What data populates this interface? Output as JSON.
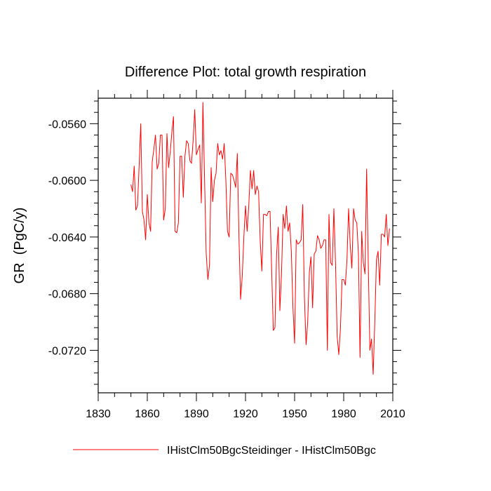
{
  "chart_data": {
    "type": "line",
    "title": "Difference Plot: total growth respiration",
    "xlabel": "",
    "ylabel": "GR  (PgC/y)",
    "xlim": [
      1830,
      2010
    ],
    "ylim": [
      -0.075,
      -0.0542
    ],
    "xticks": [
      1830,
      1860,
      1890,
      1920,
      1950,
      1980,
      2010
    ],
    "xtick_labels": [
      "1830",
      "1860",
      "1890",
      "1920",
      "1950",
      "1980",
      "2010"
    ],
    "yticks": [
      -0.056,
      -0.06,
      -0.064,
      -0.068,
      -0.072
    ],
    "ytick_labels": [
      "-0.0560",
      "-0.0600",
      "-0.0640",
      "-0.0680",
      "-0.0720"
    ],
    "grid": false,
    "legend_position": "bottom",
    "series": [
      {
        "name": "IHistClm50BgcSteidinger - IHistClm50Bgc",
        "color": "#ff0000",
        "x_start": 1850,
        "x_step": 1,
        "values": [
          -0.0603,
          -0.0608,
          -0.059,
          -0.0621,
          -0.0618,
          -0.059,
          -0.056,
          -0.0622,
          -0.0628,
          -0.0642,
          -0.061,
          -0.063,
          -0.0636,
          -0.0587,
          -0.0578,
          -0.0568,
          -0.0592,
          -0.0588,
          -0.0568,
          -0.0568,
          -0.0628,
          -0.062,
          -0.0567,
          -0.0591,
          -0.058,
          -0.0566,
          -0.0555,
          -0.0636,
          -0.0637,
          -0.063,
          -0.0583,
          -0.0583,
          -0.0612,
          -0.0583,
          -0.0572,
          -0.0574,
          -0.0586,
          -0.0588,
          -0.0572,
          -0.055,
          -0.0582,
          -0.0578,
          -0.0575,
          -0.0616,
          -0.0545,
          -0.06,
          -0.0652,
          -0.067,
          -0.066,
          -0.0591,
          -0.0615,
          -0.06,
          -0.0595,
          -0.0574,
          -0.0582,
          -0.0579,
          -0.0585,
          -0.0574,
          -0.06,
          -0.0636,
          -0.064,
          -0.0595,
          -0.0596,
          -0.06,
          -0.0605,
          -0.0581,
          -0.064,
          -0.0684,
          -0.0668,
          -0.064,
          -0.0618,
          -0.0636,
          -0.0618,
          -0.0593,
          -0.0606,
          -0.0593,
          -0.061,
          -0.0604,
          -0.0608,
          -0.0643,
          -0.0664,
          -0.0624,
          -0.0624,
          -0.0625,
          -0.0622,
          -0.0622,
          -0.0664,
          -0.0706,
          -0.0704,
          -0.0652,
          -0.0633,
          -0.0692,
          -0.0666,
          -0.0624,
          -0.0634,
          -0.0618,
          -0.0636,
          -0.063,
          -0.065,
          -0.069,
          -0.0715,
          -0.0642,
          -0.0645,
          -0.0644,
          -0.0642,
          -0.0617,
          -0.0682,
          -0.0716,
          -0.07,
          -0.0665,
          -0.0654,
          -0.069,
          -0.0652,
          -0.065,
          -0.0639,
          -0.0642,
          -0.0648,
          -0.0646,
          -0.0642,
          -0.0642,
          -0.072,
          -0.0624,
          -0.0658,
          -0.066,
          -0.062,
          -0.0658,
          -0.071,
          -0.0723,
          -0.0705,
          -0.067,
          -0.067,
          -0.0674,
          -0.0656,
          -0.062,
          -0.0646,
          -0.0662,
          -0.062,
          -0.0628,
          -0.063,
          -0.0652,
          -0.0725,
          -0.0636,
          -0.0658,
          -0.0666,
          -0.0592,
          -0.0658,
          -0.072,
          -0.0712,
          -0.0737,
          -0.07,
          -0.0656,
          -0.065,
          -0.0674,
          -0.0638,
          -0.0638,
          -0.064,
          -0.0624,
          -0.0646,
          -0.0634
        ]
      }
    ]
  }
}
